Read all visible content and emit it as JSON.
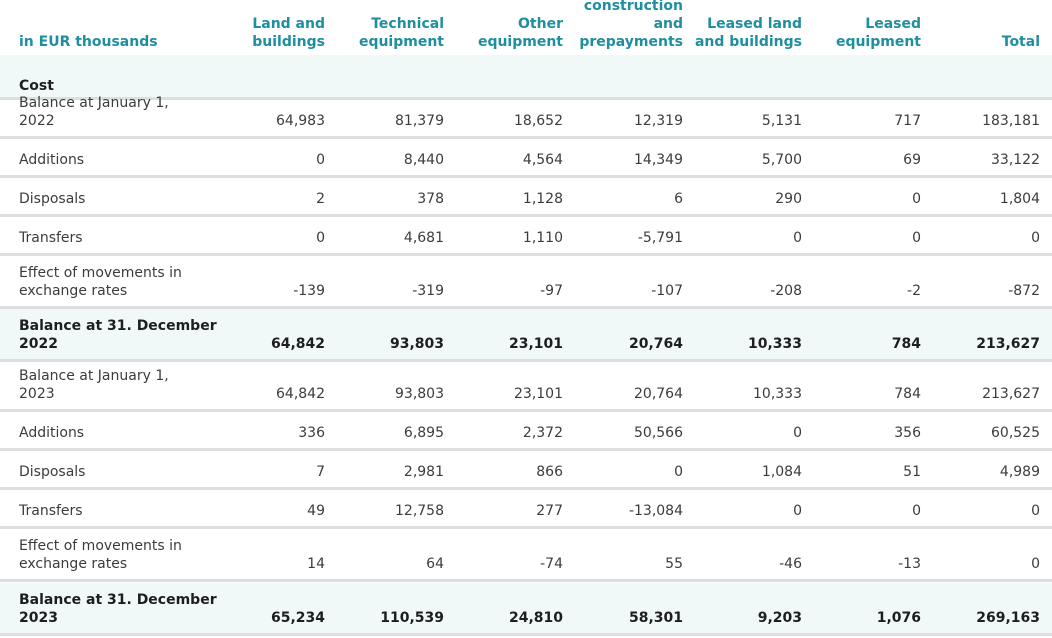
{
  "table": {
    "headers": [
      "in EUR thousands",
      "Land and\nbuildings",
      "Technical\nequipment",
      "Other\nequipment",
      "construction\nand\nprepayments",
      "Leased land\nand buildings",
      "Leased\nequipment",
      "Total"
    ],
    "section_label": "Cost",
    "rows": [
      {
        "label": "Balance at January 1,\n2022",
        "values": [
          "64,983",
          "81,379",
          "18,652",
          "12,319",
          "5,131",
          "717",
          "183,181"
        ],
        "bold": false
      },
      {
        "label": "Additions",
        "values": [
          "0",
          "8,440",
          "4,564",
          "14,349",
          "5,700",
          "69",
          "33,122"
        ],
        "bold": false
      },
      {
        "label": "Disposals",
        "values": [
          "2",
          "378",
          "1,128",
          "6",
          "290",
          "0",
          "1,804"
        ],
        "bold": false
      },
      {
        "label": "Transfers",
        "values": [
          "0",
          "4,681",
          "1,110",
          "-5,791",
          "0",
          "0",
          "0"
        ],
        "bold": false
      },
      {
        "label": "Effect of movements in\nexchange rates",
        "values": [
          "-139",
          "-319",
          "-97",
          "-107",
          "-208",
          "-2",
          "-872"
        ],
        "bold": false
      },
      {
        "label": "Balance at 31. December\n2022",
        "values": [
          "64,842",
          "93,803",
          "23,101",
          "20,764",
          "10,333",
          "784",
          "213,627"
        ],
        "bold": true
      },
      {
        "label": "Balance at January  1,\n2023",
        "values": [
          "64,842",
          "93,803",
          "23,101",
          "20,764",
          "10,333",
          "784",
          "213,627"
        ],
        "bold": false
      },
      {
        "label": "Additions",
        "values": [
          "336",
          "6,895",
          "2,372",
          "50,566",
          "0",
          "356",
          "60,525"
        ],
        "bold": false
      },
      {
        "label": "Disposals",
        "values": [
          "7",
          "2,981",
          "866",
          "0",
          "1,084",
          "51",
          "4,989"
        ],
        "bold": false
      },
      {
        "label": "Transfers",
        "values": [
          "49",
          "12,758",
          "277",
          "-13,084",
          "0",
          "0",
          "0"
        ],
        "bold": false
      },
      {
        "label": "Effect of movements in\nexchange rates",
        "values": [
          "14",
          "64",
          "-74",
          "55",
          "-46",
          "-13",
          "0"
        ],
        "bold": false
      },
      {
        "label": "Balance at 31. December\n2023",
        "values": [
          "65,234",
          "110,539",
          "24,810",
          "58,301",
          "9,203",
          "1,076",
          "269,163"
        ],
        "bold": true
      }
    ]
  }
}
